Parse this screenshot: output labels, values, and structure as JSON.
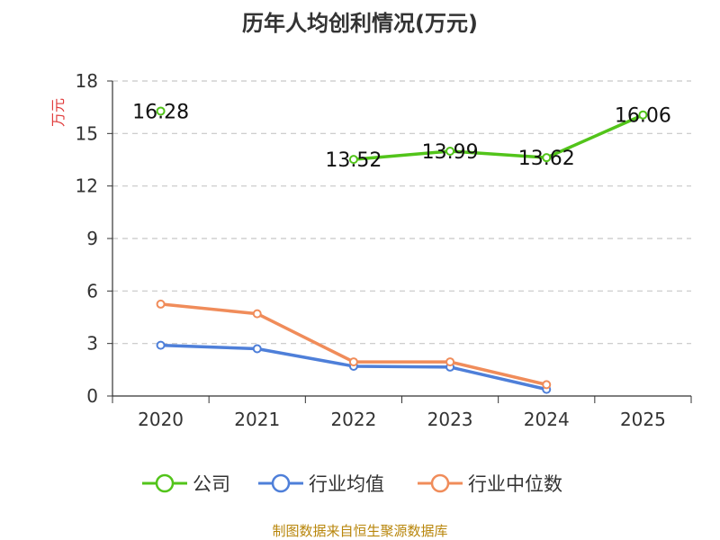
{
  "chart_data": {
    "type": "line",
    "title": "历年人均创利情况(万元)",
    "ylabel": "万元",
    "xlabel": "",
    "ylim": [
      0,
      18
    ],
    "yticks": [
      0,
      3,
      6,
      9,
      12,
      15,
      18
    ],
    "grid": true,
    "legend_position": "bottom",
    "categories": [
      "2020",
      "2021",
      "2022",
      "2023",
      "2024",
      "2025"
    ],
    "series": [
      {
        "name": "公司",
        "color": "#52c41a",
        "values": [
          16.28,
          null,
          13.52,
          13.99,
          13.62,
          16.06
        ],
        "labels": [
          "16.28",
          null,
          "13.52",
          "13.99",
          "13.62",
          "16.06"
        ]
      },
      {
        "name": "行业均值",
        "color": "#4e7fd9",
        "values": [
          2.9,
          2.7,
          1.7,
          1.65,
          0.38,
          null
        ]
      },
      {
        "name": "行业中位数",
        "color": "#f08c5a",
        "values": [
          5.25,
          4.7,
          1.95,
          1.95,
          0.65,
          null
        ]
      }
    ]
  },
  "source": "制图数据来自恒生聚源数据库"
}
